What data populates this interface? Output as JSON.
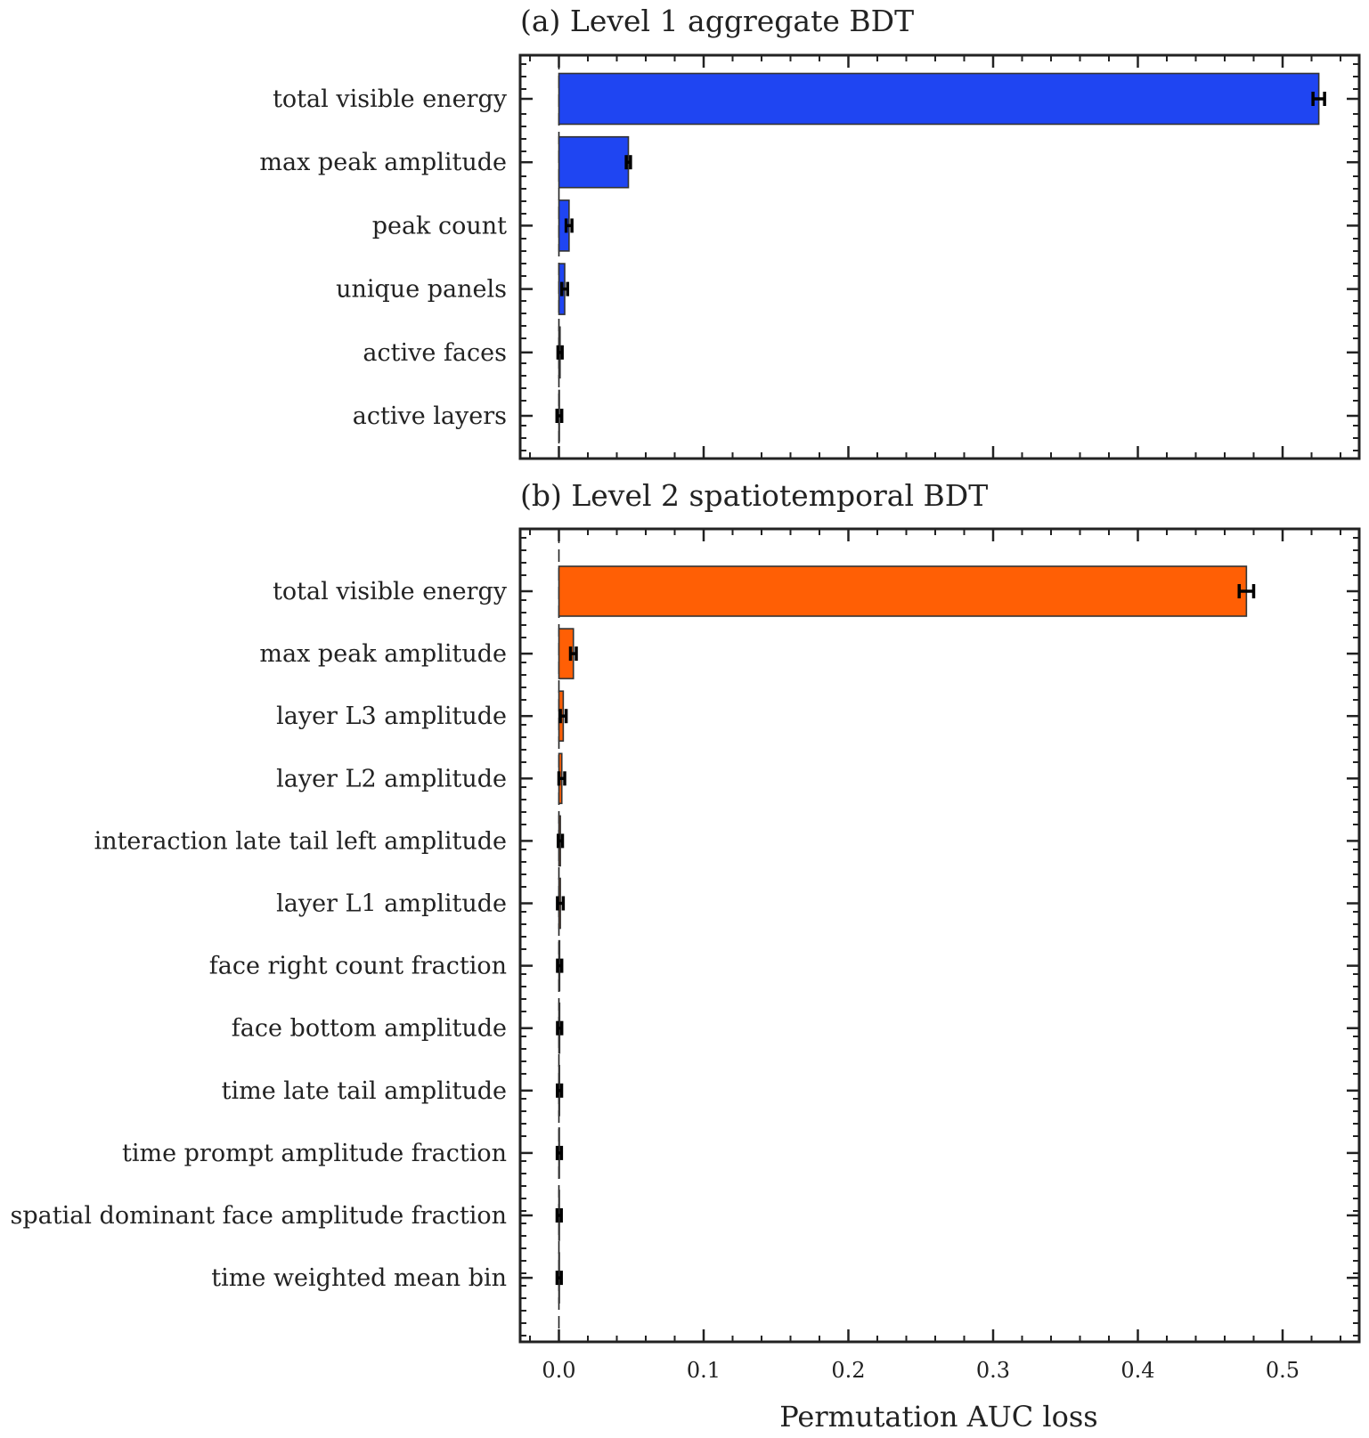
{
  "chart_data": [
    {
      "type": "bar",
      "orientation": "horizontal",
      "title": "(a) Level 1 aggregate BDT",
      "categories": [
        "total visible energy",
        "max peak amplitude",
        "peak count",
        "unique panels",
        "active faces",
        "active layers"
      ],
      "values": [
        0.525,
        0.048,
        0.007,
        0.004,
        0.0008,
        0.0003
      ],
      "errors": [
        0.004,
        0.001,
        0.002,
        0.002,
        0.001,
        0.0008
      ],
      "color": "#1f45f2",
      "xlim": [
        -0.027,
        0.555
      ],
      "xlabel": "",
      "grid": false
    },
    {
      "type": "bar",
      "orientation": "horizontal",
      "title": "(b) Level 2 spatiotemporal BDT",
      "categories": [
        "total visible energy",
        "max peak amplitude",
        "layer L3 amplitude",
        "layer L2 amplitude",
        "interaction late tail left amplitude",
        "layer L1 amplitude",
        "face right count fraction",
        "face bottom amplitude",
        "time late tail amplitude",
        "time prompt amplitude fraction",
        "spatial dominant face amplitude fraction",
        "time weighted mean bin"
      ],
      "values": [
        0.475,
        0.01,
        0.003,
        0.002,
        0.001,
        0.001,
        0.0005,
        0.0005,
        0.0004,
        0.0003,
        0.0002,
        0.0002
      ],
      "errors": [
        0.005,
        0.002,
        0.002,
        0.002,
        0.001,
        0.002,
        0.001,
        0.001,
        0.001,
        0.001,
        0.001,
        0.001
      ],
      "color": "#ff5f05",
      "xlim": [
        -0.027,
        0.555
      ],
      "xlabel": "Permutation AUC loss",
      "xticks": [
        "0.0",
        "0.1",
        "0.2",
        "0.3",
        "0.4",
        "0.5"
      ],
      "grid": false
    }
  ]
}
